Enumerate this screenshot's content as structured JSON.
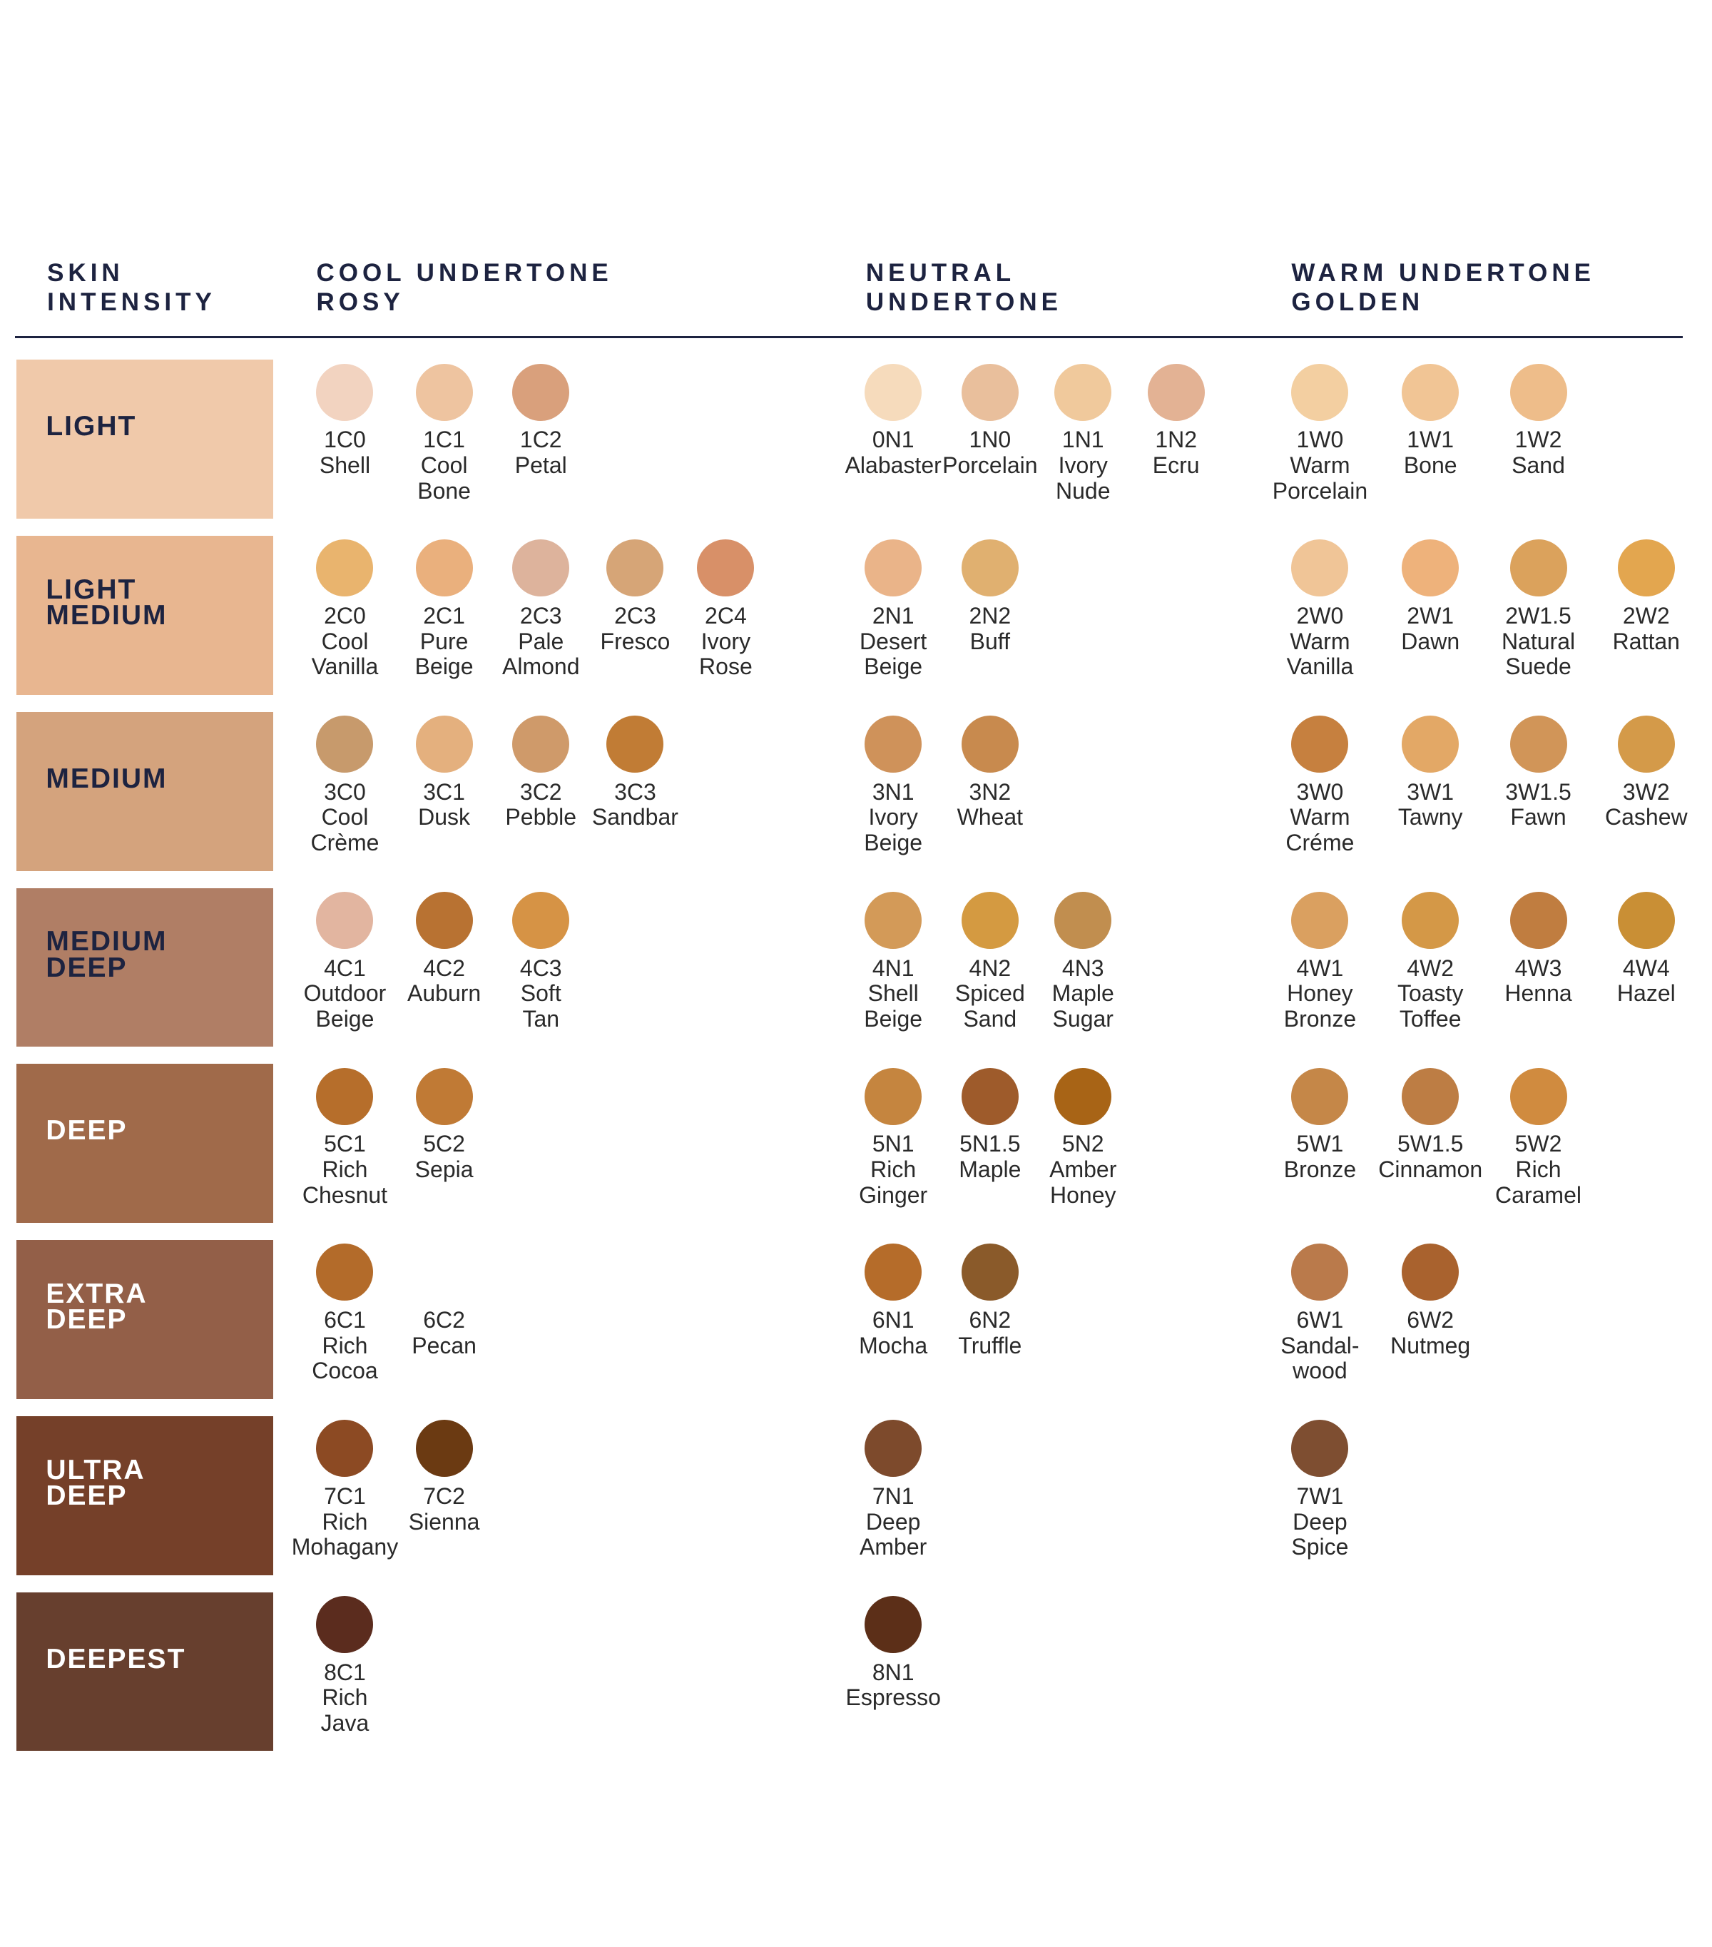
{
  "headers": [
    [
      "SKIN",
      "INTENSITY"
    ],
    [
      "COOL UNDERTONE",
      "ROSY"
    ],
    [
      "NEUTRAL",
      "UNDERTONE"
    ],
    [
      "WARM UNDERTONE",
      "GOLDEN"
    ]
  ],
  "rows": [
    {
      "label": [
        "LIGHT"
      ],
      "color": "#f0c9aa",
      "label_color": "#1d2340",
      "cool": [
        {
          "code": "1C0",
          "name": [
            "Shell"
          ],
          "color": "#f2d3c0"
        },
        {
          "code": "1C1",
          "name": [
            "Cool",
            "Bone"
          ],
          "color": "#eec4a0"
        },
        {
          "code": "1C2",
          "name": [
            "Petal"
          ],
          "color": "#d9a07c"
        }
      ],
      "neutral": [
        {
          "code": "0N1",
          "name": [
            "Alabaster"
          ],
          "color": "#f6dbbc"
        },
        {
          "code": "1N0",
          "name": [
            "Porcelain"
          ],
          "color": "#e9bf9c"
        },
        {
          "code": "1N1",
          "name": [
            "Ivory",
            "Nude"
          ],
          "color": "#f0c99c"
        },
        {
          "code": "1N2",
          "name": [
            "Ecru"
          ],
          "color": "#e3b294"
        }
      ],
      "warm": [
        {
          "code": "1W0",
          "name": [
            "Warm",
            "Porcelain"
          ],
          "color": "#f3cfa1"
        },
        {
          "code": "1W1",
          "name": [
            "Bone"
          ],
          "color": "#f1c595"
        },
        {
          "code": "1W2",
          "name": [
            "Sand"
          ],
          "color": "#eebd8a"
        }
      ]
    },
    {
      "label": [
        "LIGHT",
        "MEDIUM"
      ],
      "color": "#e8b690",
      "label_color": "#1d2340",
      "cool": [
        {
          "code": "2C0",
          "name": [
            "Cool",
            "Vanilla"
          ],
          "color": "#e9b46e"
        },
        {
          "code": "2C1",
          "name": [
            "Pure",
            "Beige"
          ],
          "color": "#eab07d"
        },
        {
          "code": "2C3",
          "name": [
            "Pale",
            "Almond"
          ],
          "color": "#ddb39c"
        },
        {
          "code": "2C3",
          "name": [
            "Fresco"
          ],
          "color": "#d6a577"
        },
        {
          "code": "2C4",
          "name": [
            "Ivory",
            "Rose"
          ],
          "color": "#d89068"
        }
      ],
      "neutral": [
        {
          "code": "2N1",
          "name": [
            "Desert",
            "Beige"
          ],
          "color": "#eab489"
        },
        {
          "code": "2N2",
          "name": [
            "Buff"
          ],
          "color": "#e0b070"
        }
      ],
      "warm": [
        {
          "code": "2W0",
          "name": [
            "Warm",
            "Vanilla"
          ],
          "color": "#f0c597"
        },
        {
          "code": "2W1",
          "name": [
            "Dawn"
          ],
          "color": "#eeb27b"
        },
        {
          "code": "2W1.5",
          "name": [
            "Natural",
            "Suede"
          ],
          "color": "#dba25c"
        },
        {
          "code": "2W2",
          "name": [
            "Rattan"
          ],
          "color": "#e3a64f"
        }
      ]
    },
    {
      "label": [
        "MEDIUM"
      ],
      "color": "#d4a37d",
      "label_color": "#1d2340",
      "cool": [
        {
          "code": "3C0",
          "name": [
            "Cool",
            "Crème"
          ],
          "color": "#c79a6c"
        },
        {
          "code": "3C1",
          "name": [
            "Dusk"
          ],
          "color": "#e4b07e"
        },
        {
          "code": "3C2",
          "name": [
            "Pebble"
          ],
          "color": "#cf9a6a"
        },
        {
          "code": "3C3",
          "name": [
            "Sandbar"
          ],
          "color": "#c17c35"
        }
      ],
      "neutral": [
        {
          "code": "3N1",
          "name": [
            "Ivory",
            "Beige"
          ],
          "color": "#cf925a"
        },
        {
          "code": "3N2",
          "name": [
            "Wheat"
          ],
          "color": "#c88a4e"
        }
      ],
      "warm": [
        {
          "code": "3W0",
          "name": [
            "Warm",
            "Créme"
          ],
          "color": "#c6803f"
        },
        {
          "code": "3W1",
          "name": [
            "Tawny"
          ],
          "color": "#e3a866"
        },
        {
          "code": "3W1.5",
          "name": [
            "Fawn"
          ],
          "color": "#d19558"
        },
        {
          "code": "3W2",
          "name": [
            "Cashew"
          ],
          "color": "#d49a49"
        }
      ]
    },
    {
      "label": [
        "MEDIUM",
        "DEEP"
      ],
      "color": "#b07e65",
      "label_color": "#1d2340",
      "cool": [
        {
          "code": "4C1",
          "name": [
            "Outdoor",
            "Beige"
          ],
          "color": "#e2b5a0"
        },
        {
          "code": "4C2",
          "name": [
            "Auburn"
          ],
          "color": "#b87232"
        },
        {
          "code": "4C3",
          "name": [
            "Soft",
            "Tan"
          ],
          "color": "#d69345"
        }
      ],
      "neutral": [
        {
          "code": "4N1",
          "name": [
            "Shell",
            "Beige"
          ],
          "color": "#d39a58"
        },
        {
          "code": "4N2",
          "name": [
            "Spiced",
            "Sand"
          ],
          "color": "#d49a41"
        },
        {
          "code": "4N3",
          "name": [
            "Maple",
            "Sugar"
          ],
          "color": "#c18e4f"
        }
      ],
      "warm": [
        {
          "code": "4W1",
          "name": [
            "Honey",
            "Bronze"
          ],
          "color": "#daa060"
        },
        {
          "code": "4W2",
          "name": [
            "Toasty",
            "Toffee"
          ],
          "color": "#d49847"
        },
        {
          "code": "4W3",
          "name": [
            "Henna"
          ],
          "color": "#c07d40"
        },
        {
          "code": "4W4",
          "name": [
            "Hazel"
          ],
          "color": "#c98f35"
        }
      ]
    },
    {
      "label": [
        "DEEP"
      ],
      "color": "#a06a4a",
      "label_color": "#ffffff",
      "cool": [
        {
          "code": "5C1",
          "name": [
            "Rich",
            "Chesnut"
          ],
          "color": "#b66e2b"
        },
        {
          "code": "5C2",
          "name": [
            "Sepia"
          ],
          "color": "#c07a35"
        }
      ],
      "neutral": [
        {
          "code": "5N1",
          "name": [
            "Rich",
            "Ginger"
          ],
          "color": "#c5853f"
        },
        {
          "code": "5N1.5",
          "name": [
            "Maple"
          ],
          "color": "#9e5b2b"
        },
        {
          "code": "5N2",
          "name": [
            "Amber",
            "Honey"
          ],
          "color": "#a86416"
        }
      ],
      "warm": [
        {
          "code": "5W1",
          "name": [
            "Bronze"
          ],
          "color": "#c58748"
        },
        {
          "code": "5W1.5",
          "name": [
            "Cinnamon"
          ],
          "color": "#bd7d44"
        },
        {
          "code": "5W2",
          "name": [
            "Rich",
            "Caramel"
          ],
          "color": "#d08b3f"
        }
      ]
    },
    {
      "label": [
        "EXTRA",
        "DEEP"
      ],
      "color": "#935f48",
      "label_color": "#ffffff",
      "cool": [
        {
          "code": "6C1",
          "name": [
            "Rich",
            "Cocoa"
          ],
          "color": "#b36b2a"
        },
        {
          "code": "6C2",
          "name": [
            "Pecan"
          ],
          "color": null
        }
      ],
      "neutral": [
        {
          "code": "6N1",
          "name": [
            "Mocha"
          ],
          "color": "#b56c2a"
        },
        {
          "code": "6N2",
          "name": [
            "Truffle"
          ],
          "color": "#8a5a2a"
        }
      ],
      "warm": [
        {
          "code": "6W1",
          "name": [
            "Sandal-",
            "wood"
          ],
          "color": "#ba7a4b"
        },
        {
          "code": "6W2",
          "name": [
            "Nutmeg"
          ],
          "color": "#a9622e"
        }
      ]
    },
    {
      "label": [
        "ULTRA",
        "DEEP"
      ],
      "color": "#754029",
      "label_color": "#ffffff",
      "cool": [
        {
          "code": "7C1",
          "name": [
            "Rich",
            "Mohagany"
          ],
          "color": "#8c4a23"
        },
        {
          "code": "7C2",
          "name": [
            "Sienna"
          ],
          "color": "#6b3a12"
        }
      ],
      "neutral": [
        {
          "code": "7N1",
          "name": [
            "Deep",
            "Amber"
          ],
          "color": "#7d4a2c"
        }
      ],
      "warm": [
        {
          "code": "7W1",
          "name": [
            "Deep",
            "Spice"
          ],
          "color": "#7e4e31"
        }
      ]
    },
    {
      "label": [
        "DEEPEST"
      ],
      "color": "#673f2e",
      "label_color": "#ffffff",
      "cool": [
        {
          "code": "8C1",
          "name": [
            "Rich",
            "Java"
          ],
          "color": "#5b2c1e"
        }
      ],
      "neutral": [
        {
          "code": "8N1",
          "name": [
            "Espresso"
          ],
          "color": "#5c2f18"
        }
      ],
      "warm": []
    }
  ]
}
